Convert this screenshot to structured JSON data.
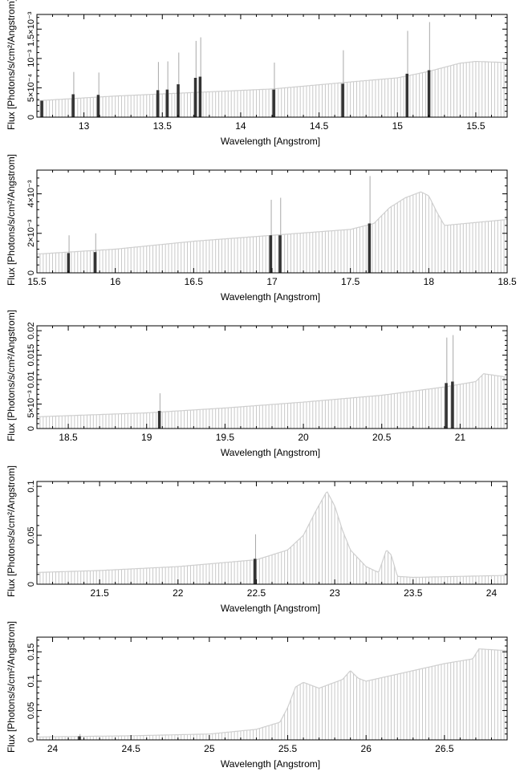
{
  "chart_data": [
    {
      "type": "line",
      "xlabel": "Wavelength [Angstrom]",
      "ylabel": "Flux [Photons/s/cm²/Angstrom]",
      "xlim": [
        12.7,
        15.7
      ],
      "ylim": [
        0,
        0.00175
      ],
      "xticks": [
        13,
        13.5,
        14,
        14.5,
        15,
        15.5
      ],
      "xtick_labels": [
        "13",
        "13.5",
        "14",
        "14.5",
        "15",
        "15.5"
      ],
      "yticks": [
        0,
        0.0005,
        0.001,
        0.0015
      ],
      "ytick_labels": [
        "0",
        "5×10⁻⁴",
        "10⁻³",
        "1.5×10⁻³"
      ],
      "series": [
        {
          "x": [
            12.7,
            13.2,
            13.7,
            14.2,
            14.7,
            15.0,
            15.2,
            15.4,
            15.5,
            15.7
          ],
          "values": [
            0.00028,
            0.00036,
            0.00042,
            0.00048,
            0.0006,
            0.00067,
            0.00078,
            0.00092,
            0.00095,
            0.00093
          ]
        }
      ],
      "lines": [
        {
          "x": 12.73,
          "value": 0.00028,
          "peak": 0.00028
        },
        {
          "x": 12.93,
          "value": 0.00039,
          "peak": 0.00077
        },
        {
          "x": 13.09,
          "value": 0.00038,
          "peak": 0.00076
        },
        {
          "x": 13.47,
          "value": 0.00046,
          "peak": 0.00094
        },
        {
          "x": 13.53,
          "value": 0.00047,
          "peak": 0.00095
        },
        {
          "x": 13.6,
          "value": 0.00056,
          "peak": 0.0011
        },
        {
          "x": 13.71,
          "value": 0.00067,
          "peak": 0.0013
        },
        {
          "x": 13.74,
          "value": 0.00069,
          "peak": 0.00136
        },
        {
          "x": 14.21,
          "value": 0.00047,
          "peak": 0.00093
        },
        {
          "x": 14.65,
          "value": 0.00057,
          "peak": 0.00114
        },
        {
          "x": 15.06,
          "value": 0.00074,
          "peak": 0.00147
        },
        {
          "x": 15.2,
          "value": 0.0008,
          "peak": 0.00162
        }
      ]
    },
    {
      "type": "line",
      "xlabel": "Wavelength [Angstrom]",
      "ylabel": "Flux [Photons/s/cm²/Angstrom]",
      "xlim": [
        15.5,
        18.5
      ],
      "ylim": [
        0,
        0.0052
      ],
      "xticks": [
        15.5,
        16,
        16.5,
        17,
        17.5,
        18,
        18.5
      ],
      "xtick_labels": [
        "15.5",
        "16",
        "16.5",
        "17",
        "17.5",
        "18",
        "18.5"
      ],
      "yticks": [
        0,
        0.002,
        0.004
      ],
      "ytick_labels": [
        "0",
        "2×10⁻³",
        "4×10⁻³"
      ],
      "series": [
        {
          "x": [
            15.5,
            16.0,
            16.5,
            17.0,
            17.5,
            17.65,
            17.75,
            17.85,
            17.95,
            18.0,
            18.05,
            18.1,
            18.5
          ],
          "values": [
            0.00095,
            0.0012,
            0.0016,
            0.0019,
            0.0022,
            0.0025,
            0.0033,
            0.0038,
            0.0041,
            0.0039,
            0.0031,
            0.0024,
            0.0027
          ]
        }
      ],
      "lines": [
        {
          "x": 15.7,
          "value": 0.001,
          "peak": 0.0019
        },
        {
          "x": 15.87,
          "value": 0.00105,
          "peak": 0.002
        },
        {
          "x": 16.99,
          "value": 0.0019,
          "peak": 0.0037
        },
        {
          "x": 17.05,
          "value": 0.0019,
          "peak": 0.0038
        },
        {
          "x": 17.62,
          "value": 0.0025,
          "peak": 0.0049
        }
      ]
    },
    {
      "type": "line",
      "xlabel": "Wavelength [Angstrom]",
      "ylabel": "Flux [Photons/s/cm²/Angstrom]",
      "xlim": [
        18.3,
        21.3
      ],
      "ylim": [
        0,
        0.021
      ],
      "xticks": [
        18.5,
        19,
        19.5,
        20,
        20.5,
        21
      ],
      "xtick_labels": [
        "18.5",
        "19",
        "19.5",
        "20",
        "20.5",
        "21"
      ],
      "yticks": [
        0,
        0.005,
        0.01,
        0.015,
        0.02
      ],
      "ytick_labels": [
        "0",
        "5×10⁻³",
        "0.01",
        "0.015",
        "0.02"
      ],
      "series": [
        {
          "x": [
            18.3,
            19.0,
            19.5,
            20.0,
            20.5,
            20.9,
            21.1,
            21.15,
            21.3
          ],
          "values": [
            0.0024,
            0.0032,
            0.0042,
            0.0054,
            0.0068,
            0.0085,
            0.0096,
            0.0112,
            0.0105
          ]
        }
      ],
      "lines": [
        {
          "x": 19.08,
          "value": 0.0036,
          "peak": 0.0072
        },
        {
          "x": 20.91,
          "value": 0.0093,
          "peak": 0.0186
        },
        {
          "x": 20.95,
          "value": 0.0096,
          "peak": 0.0191
        }
      ]
    },
    {
      "type": "line",
      "xlabel": "Wavelength [Angstrom]",
      "ylabel": "Flux [Photons/s/cm²/Angstrom]",
      "xlim": [
        21.1,
        24.1
      ],
      "ylim": [
        0,
        0.105
      ],
      "xticks": [
        21.5,
        22,
        22.5,
        23,
        23.5,
        24
      ],
      "xtick_labels": [
        "21.5",
        "22",
        "22.5",
        "23",
        "23.5",
        "24"
      ],
      "yticks": [
        0,
        0.05,
        0.1
      ],
      "ytick_labels": [
        "0",
        "0.05",
        "0.1"
      ],
      "series": [
        {
          "x": [
            21.1,
            21.5,
            22.0,
            22.5,
            22.7,
            22.8,
            22.88,
            22.95,
            23.0,
            23.05,
            23.1,
            23.2,
            23.28,
            23.33,
            23.36,
            23.4,
            23.5,
            24.1
          ],
          "values": [
            0.012,
            0.014,
            0.018,
            0.025,
            0.035,
            0.05,
            0.075,
            0.095,
            0.08,
            0.055,
            0.035,
            0.018,
            0.012,
            0.035,
            0.03,
            0.008,
            0.007,
            0.009
          ]
        }
      ],
      "lines": [
        {
          "x": 22.49,
          "value": 0.026,
          "peak": 0.051
        }
      ]
    },
    {
      "type": "line",
      "xlabel": "Wavelength [Angstrom]",
      "ylabel": "Flux [Photons/s/cm²/Angstrom]",
      "xlim": [
        23.9,
        26.9
      ],
      "ylim": [
        0,
        0.175
      ],
      "xticks": [
        24,
        24.5,
        25,
        25.5,
        26,
        26.5
      ],
      "xtick_labels": [
        "24",
        "24.5",
        "25",
        "25.5",
        "26",
        "26.5"
      ],
      "yticks": [
        0,
        0.05,
        0.1,
        0.15
      ],
      "ytick_labels": [
        "0",
        "0.05",
        "0.1",
        "0.15"
      ],
      "series": [
        {
          "x": [
            23.9,
            24.5,
            25.0,
            25.3,
            25.45,
            25.5,
            25.55,
            25.6,
            25.7,
            25.85,
            25.9,
            25.95,
            26.0,
            26.5,
            26.68,
            26.72,
            26.9
          ],
          "values": [
            0.005,
            0.007,
            0.01,
            0.018,
            0.03,
            0.055,
            0.09,
            0.098,
            0.088,
            0.103,
            0.118,
            0.105,
            0.1,
            0.13,
            0.138,
            0.155,
            0.152
          ]
        }
      ],
      "lines": [
        {
          "x": 24.17,
          "value": 0.006,
          "peak": 0.01
        }
      ]
    }
  ]
}
